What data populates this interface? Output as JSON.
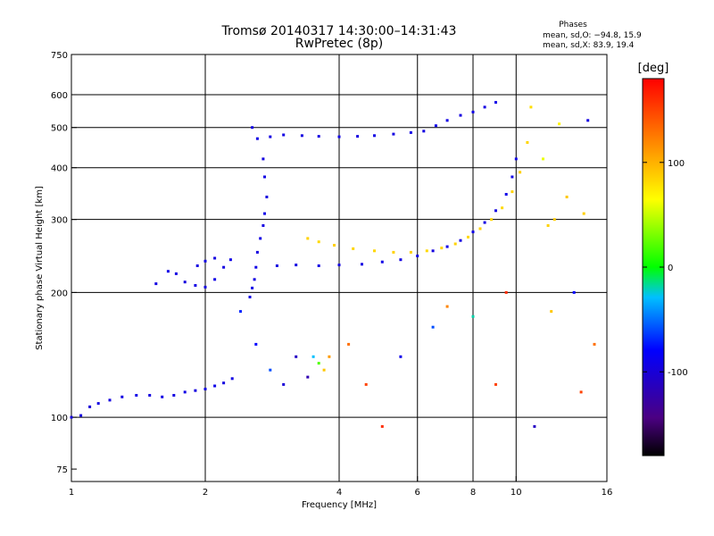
{
  "header": {
    "title_line1": "Tromsø 20140317 14:30:00–14:31:43",
    "title_line2": "RwPretec (8p)",
    "phases_label": "Phases",
    "phases_o": "mean, sd,O: −94.8, 15.9",
    "phases_x": "mean, sd,X:  83.9, 19.4"
  },
  "chart_data": {
    "type": "scatter",
    "xscale": "log",
    "yscale": "log",
    "xlim": [
      1,
      16
    ],
    "ylim": [
      70,
      750
    ],
    "xlabel": "Frequency [MHz]",
    "ylabel": "Stationary phase Virtual Height [km]",
    "xticks": [
      {
        "v": 1,
        "label": "1"
      },
      {
        "v": 2,
        "label": "2"
      },
      {
        "v": 4,
        "label": "4"
      },
      {
        "v": 6,
        "label": "6"
      },
      {
        "v": 8,
        "label": "8"
      },
      {
        "v": 10,
        "label": "10"
      },
      {
        "v": 16,
        "label": "16"
      }
    ],
    "yticks": [
      {
        "v": 75,
        "label": "75"
      },
      {
        "v": 100,
        "label": "100"
      },
      {
        "v": 200,
        "label": "200"
      },
      {
        "v": 300,
        "label": "300"
      },
      {
        "v": 400,
        "label": "400"
      },
      {
        "v": 500,
        "label": "500"
      },
      {
        "v": 600,
        "label": "600"
      },
      {
        "v": 750,
        "label": "750"
      }
    ],
    "xgrid": [
      2,
      4,
      6,
      8,
      10
    ],
    "ygrid": [
      100,
      200,
      300,
      400,
      500,
      600
    ],
    "colorbar": {
      "label": "[deg]",
      "min": -180,
      "max": 180,
      "ticks": [
        {
          "v": 100,
          "label": "100"
        },
        {
          "v": 0,
          "label": "0"
        },
        {
          "v": -100,
          "label": "-100"
        }
      ]
    },
    "series": [
      {
        "points": [
          [
            1.0,
            100,
            -96
          ],
          [
            1.05,
            101,
            -95
          ],
          [
            1.1,
            106,
            -100
          ],
          [
            1.15,
            108,
            -94
          ],
          [
            1.22,
            110,
            -96
          ],
          [
            1.3,
            112,
            -95
          ],
          [
            1.4,
            113,
            -92
          ],
          [
            1.5,
            113,
            -96
          ],
          [
            1.6,
            112,
            -94
          ],
          [
            1.7,
            113,
            -95
          ],
          [
            1.8,
            115,
            -93
          ],
          [
            1.9,
            116,
            -96
          ],
          [
            2.0,
            117,
            -95
          ],
          [
            2.1,
            119,
            -92
          ],
          [
            2.2,
            121,
            -96
          ],
          [
            2.3,
            124,
            -94
          ]
        ]
      },
      {
        "points": [
          [
            1.55,
            210,
            -95
          ],
          [
            1.65,
            225,
            -92
          ],
          [
            1.72,
            222,
            -95
          ],
          [
            1.8,
            212,
            -97
          ],
          [
            1.9,
            208,
            -94
          ],
          [
            2.0,
            206,
            -96
          ],
          [
            2.1,
            215,
            -93
          ],
          [
            2.2,
            230,
            -95
          ],
          [
            2.28,
            240,
            -92
          ],
          [
            1.92,
            232,
            -95
          ],
          [
            2.0,
            238,
            -94
          ],
          [
            2.1,
            242,
            -96
          ]
        ]
      },
      {
        "points": [
          [
            2.55,
            500,
            -95
          ],
          [
            2.62,
            470,
            -93
          ],
          [
            2.7,
            420,
            -96
          ],
          [
            2.72,
            380,
            -94
          ],
          [
            2.75,
            340,
            -97
          ],
          [
            2.72,
            310,
            -92
          ],
          [
            2.7,
            290,
            -95
          ],
          [
            2.66,
            270,
            -94
          ],
          [
            2.62,
            250,
            -96
          ],
          [
            2.6,
            230,
            -93
          ],
          [
            2.58,
            215,
            -95
          ],
          [
            2.55,
            205,
            -92
          ],
          [
            2.52,
            195,
            -94
          ]
        ]
      },
      {
        "points": [
          [
            2.8,
            475,
            -95
          ],
          [
            3.0,
            480,
            -94
          ],
          [
            3.3,
            478,
            -96
          ],
          [
            3.6,
            476,
            -95
          ],
          [
            4.0,
            475,
            -93
          ],
          [
            4.4,
            476,
            -96
          ],
          [
            4.8,
            478,
            -94
          ],
          [
            5.3,
            482,
            -95
          ],
          [
            5.8,
            486,
            -93
          ],
          [
            6.2,
            490,
            -95
          ],
          [
            6.6,
            505,
            -92
          ],
          [
            7.0,
            520,
            -94
          ],
          [
            7.5,
            535,
            -96
          ],
          [
            8.0,
            545,
            -93
          ],
          [
            8.5,
            560,
            -95
          ],
          [
            9.0,
            575,
            -92
          ]
        ]
      },
      {
        "points": [
          [
            2.9,
            232,
            -96
          ],
          [
            3.2,
            233,
            -95
          ],
          [
            3.6,
            232,
            -94
          ],
          [
            4.0,
            233,
            -96
          ],
          [
            4.5,
            234,
            -95
          ],
          [
            5.0,
            237,
            -93
          ],
          [
            5.5,
            240,
            -95
          ],
          [
            6.0,
            245,
            -94
          ],
          [
            6.5,
            252,
            -96
          ],
          [
            7.0,
            258,
            -93
          ],
          [
            7.5,
            267,
            -95
          ],
          [
            8.0,
            280,
            -92
          ],
          [
            8.5,
            295,
            -94
          ],
          [
            9.0,
            315,
            -95
          ],
          [
            9.5,
            345,
            -92
          ],
          [
            9.8,
            380,
            -93
          ],
          [
            10.0,
            420,
            -92
          ]
        ]
      },
      {
        "points": [
          [
            3.4,
            270,
            85
          ],
          [
            3.6,
            265,
            82
          ],
          [
            3.9,
            260,
            86
          ],
          [
            4.3,
            255,
            84
          ],
          [
            4.8,
            252,
            83
          ],
          [
            5.3,
            250,
            85
          ],
          [
            5.8,
            250,
            86
          ],
          [
            6.3,
            252,
            82
          ],
          [
            6.8,
            256,
            84
          ],
          [
            7.3,
            262,
            85
          ],
          [
            7.8,
            272,
            83
          ],
          [
            8.3,
            285,
            86
          ],
          [
            8.8,
            300,
            84
          ],
          [
            9.3,
            320,
            82
          ],
          [
            9.8,
            350,
            85
          ],
          [
            10.2,
            390,
            86
          ],
          [
            10.6,
            460,
            84
          ],
          [
            10.8,
            560,
            80
          ]
        ]
      },
      {
        "points": [
          [
            2.4,
            180,
            -70
          ],
          [
            2.6,
            150,
            -80
          ],
          [
            2.8,
            130,
            -60
          ],
          [
            3.0,
            120,
            -100
          ],
          [
            3.2,
            140,
            -110
          ],
          [
            3.4,
            125,
            -120
          ],
          [
            3.5,
            140,
            -30
          ],
          [
            3.6,
            135,
            20
          ],
          [
            3.7,
            130,
            90
          ],
          [
            3.8,
            140,
            110
          ]
        ]
      },
      {
        "points": [
          [
            4.2,
            150,
            130
          ],
          [
            4.6,
            120,
            150
          ],
          [
            5.0,
            95,
            160
          ],
          [
            5.5,
            140,
            -90
          ],
          [
            6.5,
            165,
            -60
          ],
          [
            7.0,
            185,
            120
          ],
          [
            8.0,
            175,
            -20
          ],
          [
            9.0,
            120,
            150
          ],
          [
            9.5,
            200,
            160
          ],
          [
            11.0,
            95,
            -110
          ],
          [
            12.0,
            180,
            90
          ],
          [
            13.5,
            200,
            -80
          ],
          [
            14.0,
            115,
            150
          ],
          [
            14.5,
            520,
            -95
          ],
          [
            12.5,
            510,
            70
          ],
          [
            11.5,
            420,
            60
          ],
          [
            11.8,
            290,
            85
          ],
          [
            12.2,
            300,
            88
          ],
          [
            13.0,
            340,
            90
          ],
          [
            14.2,
            310,
            86
          ],
          [
            15.0,
            150,
            130
          ]
        ]
      }
    ]
  }
}
